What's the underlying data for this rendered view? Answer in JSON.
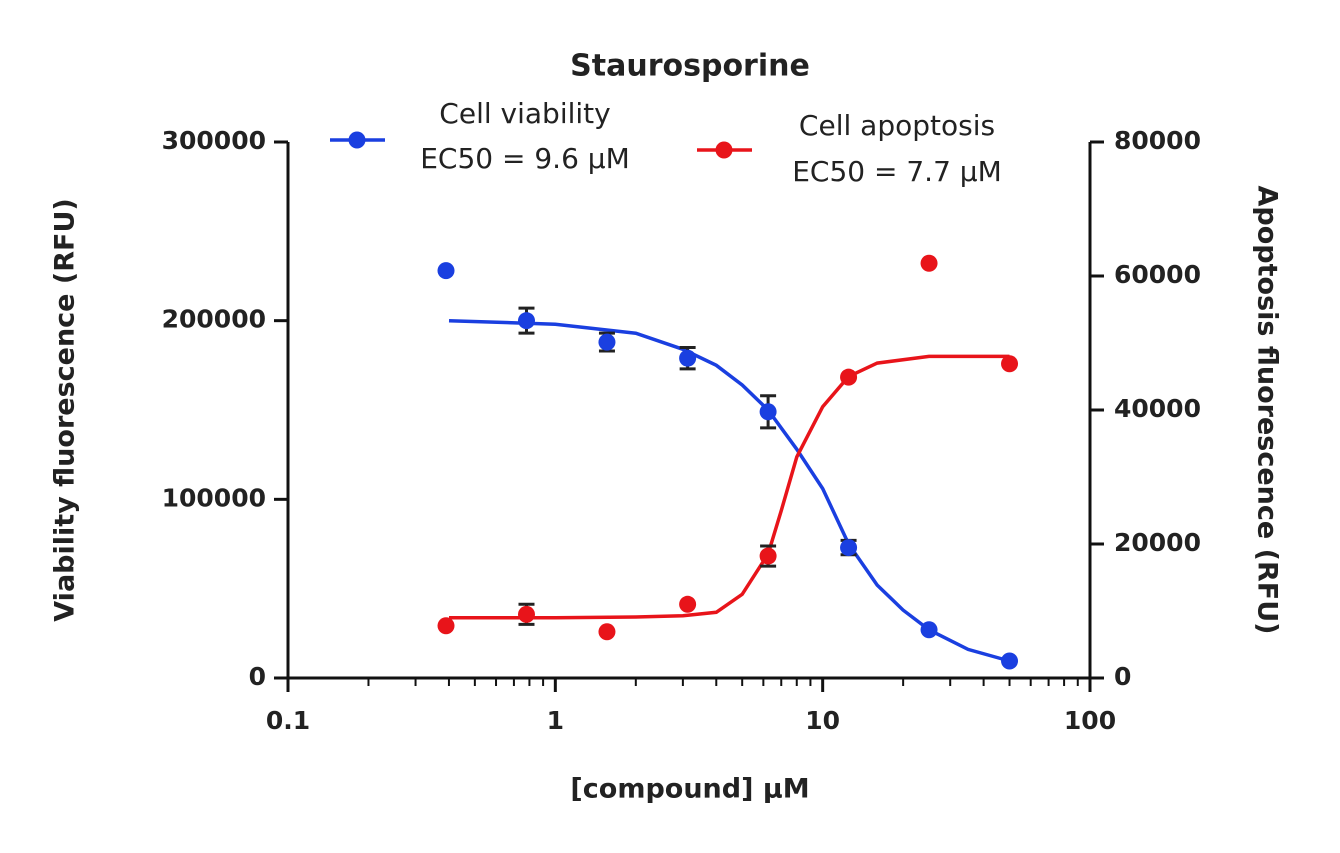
{
  "chart_data": {
    "type": "scatter",
    "title": "Staurosporine",
    "x_label": "[compound] µM",
    "y_label": "Viability fluorescence (RFU)",
    "y2_label": "Apoptosis fluorescence  (RFU)",
    "x_scale": "log",
    "xlim": [
      0.1,
      100
    ],
    "xticks": [
      0.1,
      1,
      10,
      100
    ],
    "ylim": [
      0,
      300000
    ],
    "yticks": [
      0,
      100000,
      200000,
      300000
    ],
    "y2lim": [
      0,
      80000
    ],
    "y2ticks": [
      0,
      20000,
      40000,
      60000,
      80000
    ],
    "series": [
      {
        "name": "Cell viability",
        "legend_subtext": "EC50 = 9.6 µM",
        "color": "#1a3fe0",
        "axis": "y",
        "x": [
          0.39,
          0.78,
          1.56,
          3.125,
          6.25,
          12.5,
          25,
          50
        ],
        "values": [
          228000,
          200000,
          188000,
          179000,
          149000,
          73000,
          27000,
          9500
        ],
        "errors": [
          null,
          7000,
          5000,
          6000,
          9000,
          4000,
          null,
          null
        ],
        "curve": {
          "x": [
            0.4,
            1,
            2,
            3,
            4,
            5,
            6.25,
            8,
            10,
            12.5,
            16,
            20,
            25,
            35,
            50
          ],
          "values": [
            200000,
            198000,
            193000,
            184000,
            175000,
            164000,
            150000,
            128000,
            106000,
            75000,
            52000,
            38000,
            27000,
            16000,
            9500
          ]
        }
      },
      {
        "name": "Cell apoptosis",
        "legend_subtext": "EC50 = 7.7 µM",
        "color": "#e8141a",
        "axis": "y2",
        "x": [
          0.39,
          0.78,
          1.56,
          3.125,
          6.25,
          12.5,
          25,
          50
        ],
        "values": [
          7800,
          9500,
          6900,
          11000,
          18200,
          44900,
          61900,
          46900
        ],
        "errors": [
          null,
          1500,
          null,
          null,
          1500,
          null,
          null,
          null
        ],
        "curve": {
          "x": [
            0.4,
            1,
            2,
            3,
            4,
            5,
            6.25,
            7,
            8,
            10,
            12.5,
            16,
            25,
            50
          ],
          "values": [
            9000,
            9000,
            9100,
            9300,
            9800,
            12500,
            18500,
            25000,
            33000,
            40500,
            45000,
            47000,
            48000,
            48000
          ]
        }
      }
    ]
  }
}
